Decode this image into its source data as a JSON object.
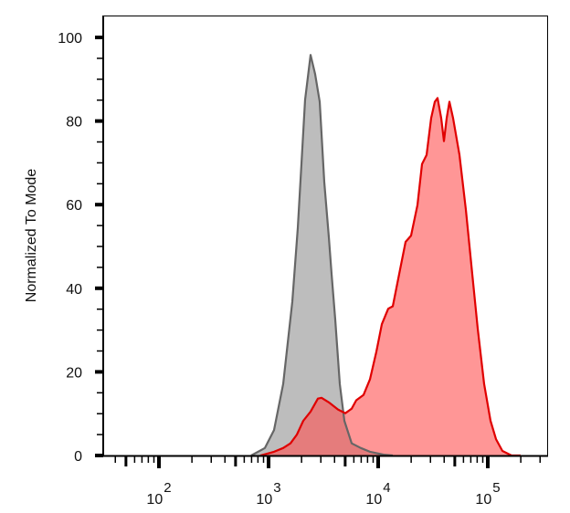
{
  "chart_data": {
    "type": "area",
    "title": "",
    "xlabel": "",
    "ylabel": "Normalized To Mode",
    "xscale": "log",
    "xlim": [
      32,
      350000
    ],
    "ylim": [
      0,
      100
    ],
    "grid": false,
    "legend": "none",
    "x_ticks": [
      {
        "base": "10",
        "exp": "2",
        "value": 100
      },
      {
        "base": "10",
        "exp": "3",
        "value": 1000
      },
      {
        "base": "10",
        "exp": "4",
        "value": 10000
      },
      {
        "base": "10",
        "exp": "5",
        "value": 100000
      }
    ],
    "y_ticks": [
      "0",
      "20",
      "40",
      "60",
      "80",
      "100"
    ],
    "series": [
      {
        "fill": "#bdbdbd",
        "stroke": "#666666",
        "x": [
          695,
          926,
          1122,
          1359,
          1647,
          1848,
          1995,
          2154,
          2416,
          2661,
          2929,
          3223,
          3548,
          3758,
          4058,
          4467,
          4917,
          5728,
          6950,
          8414,
          11220,
          13590
        ],
        "y": [
          0,
          1.8,
          6.1,
          17.1,
          36.8,
          54.4,
          69.7,
          85.1,
          95.8,
          91.2,
          84.6,
          65.4,
          52.2,
          43.4,
          32.5,
          17.1,
          8.3,
          2.9,
          1.8,
          0.9,
          0.2,
          0
        ]
      },
      {
        "fill": "#ff5050",
        "stroke": "#e00000",
        "x": [
          841,
          1122,
          1359,
          1585,
          1812,
          2073,
          2416,
          2818,
          3041,
          3548,
          4297,
          5012,
          5728,
          6310,
          7356,
          8414,
          9616,
          10800,
          12350,
          13590,
          15550,
          17780,
          19950,
          22800,
          25120,
          27670,
          30410,
          32850,
          34830,
          37580,
          39810,
          42170,
          44670,
          48210,
          55210,
          63100,
          72130,
          80910,
          92680,
          105900,
          118900,
          135900,
          164800,
          199500
        ],
        "y": [
          0,
          0.9,
          1.8,
          2.9,
          5.0,
          8.3,
          10.5,
          13.6,
          13.8,
          12.7,
          11.0,
          10.1,
          11.2,
          13.2,
          14.5,
          18.2,
          24.8,
          31.4,
          35.1,
          35.7,
          43.4,
          51.1,
          52.6,
          59.9,
          69.7,
          71.9,
          80.7,
          84.6,
          85.5,
          80.7,
          75.2,
          80.7,
          84.6,
          80.7,
          71.9,
          58.8,
          43.4,
          30.3,
          17.1,
          8.3,
          3.9,
          1.1,
          0,
          0
        ]
      }
    ]
  }
}
